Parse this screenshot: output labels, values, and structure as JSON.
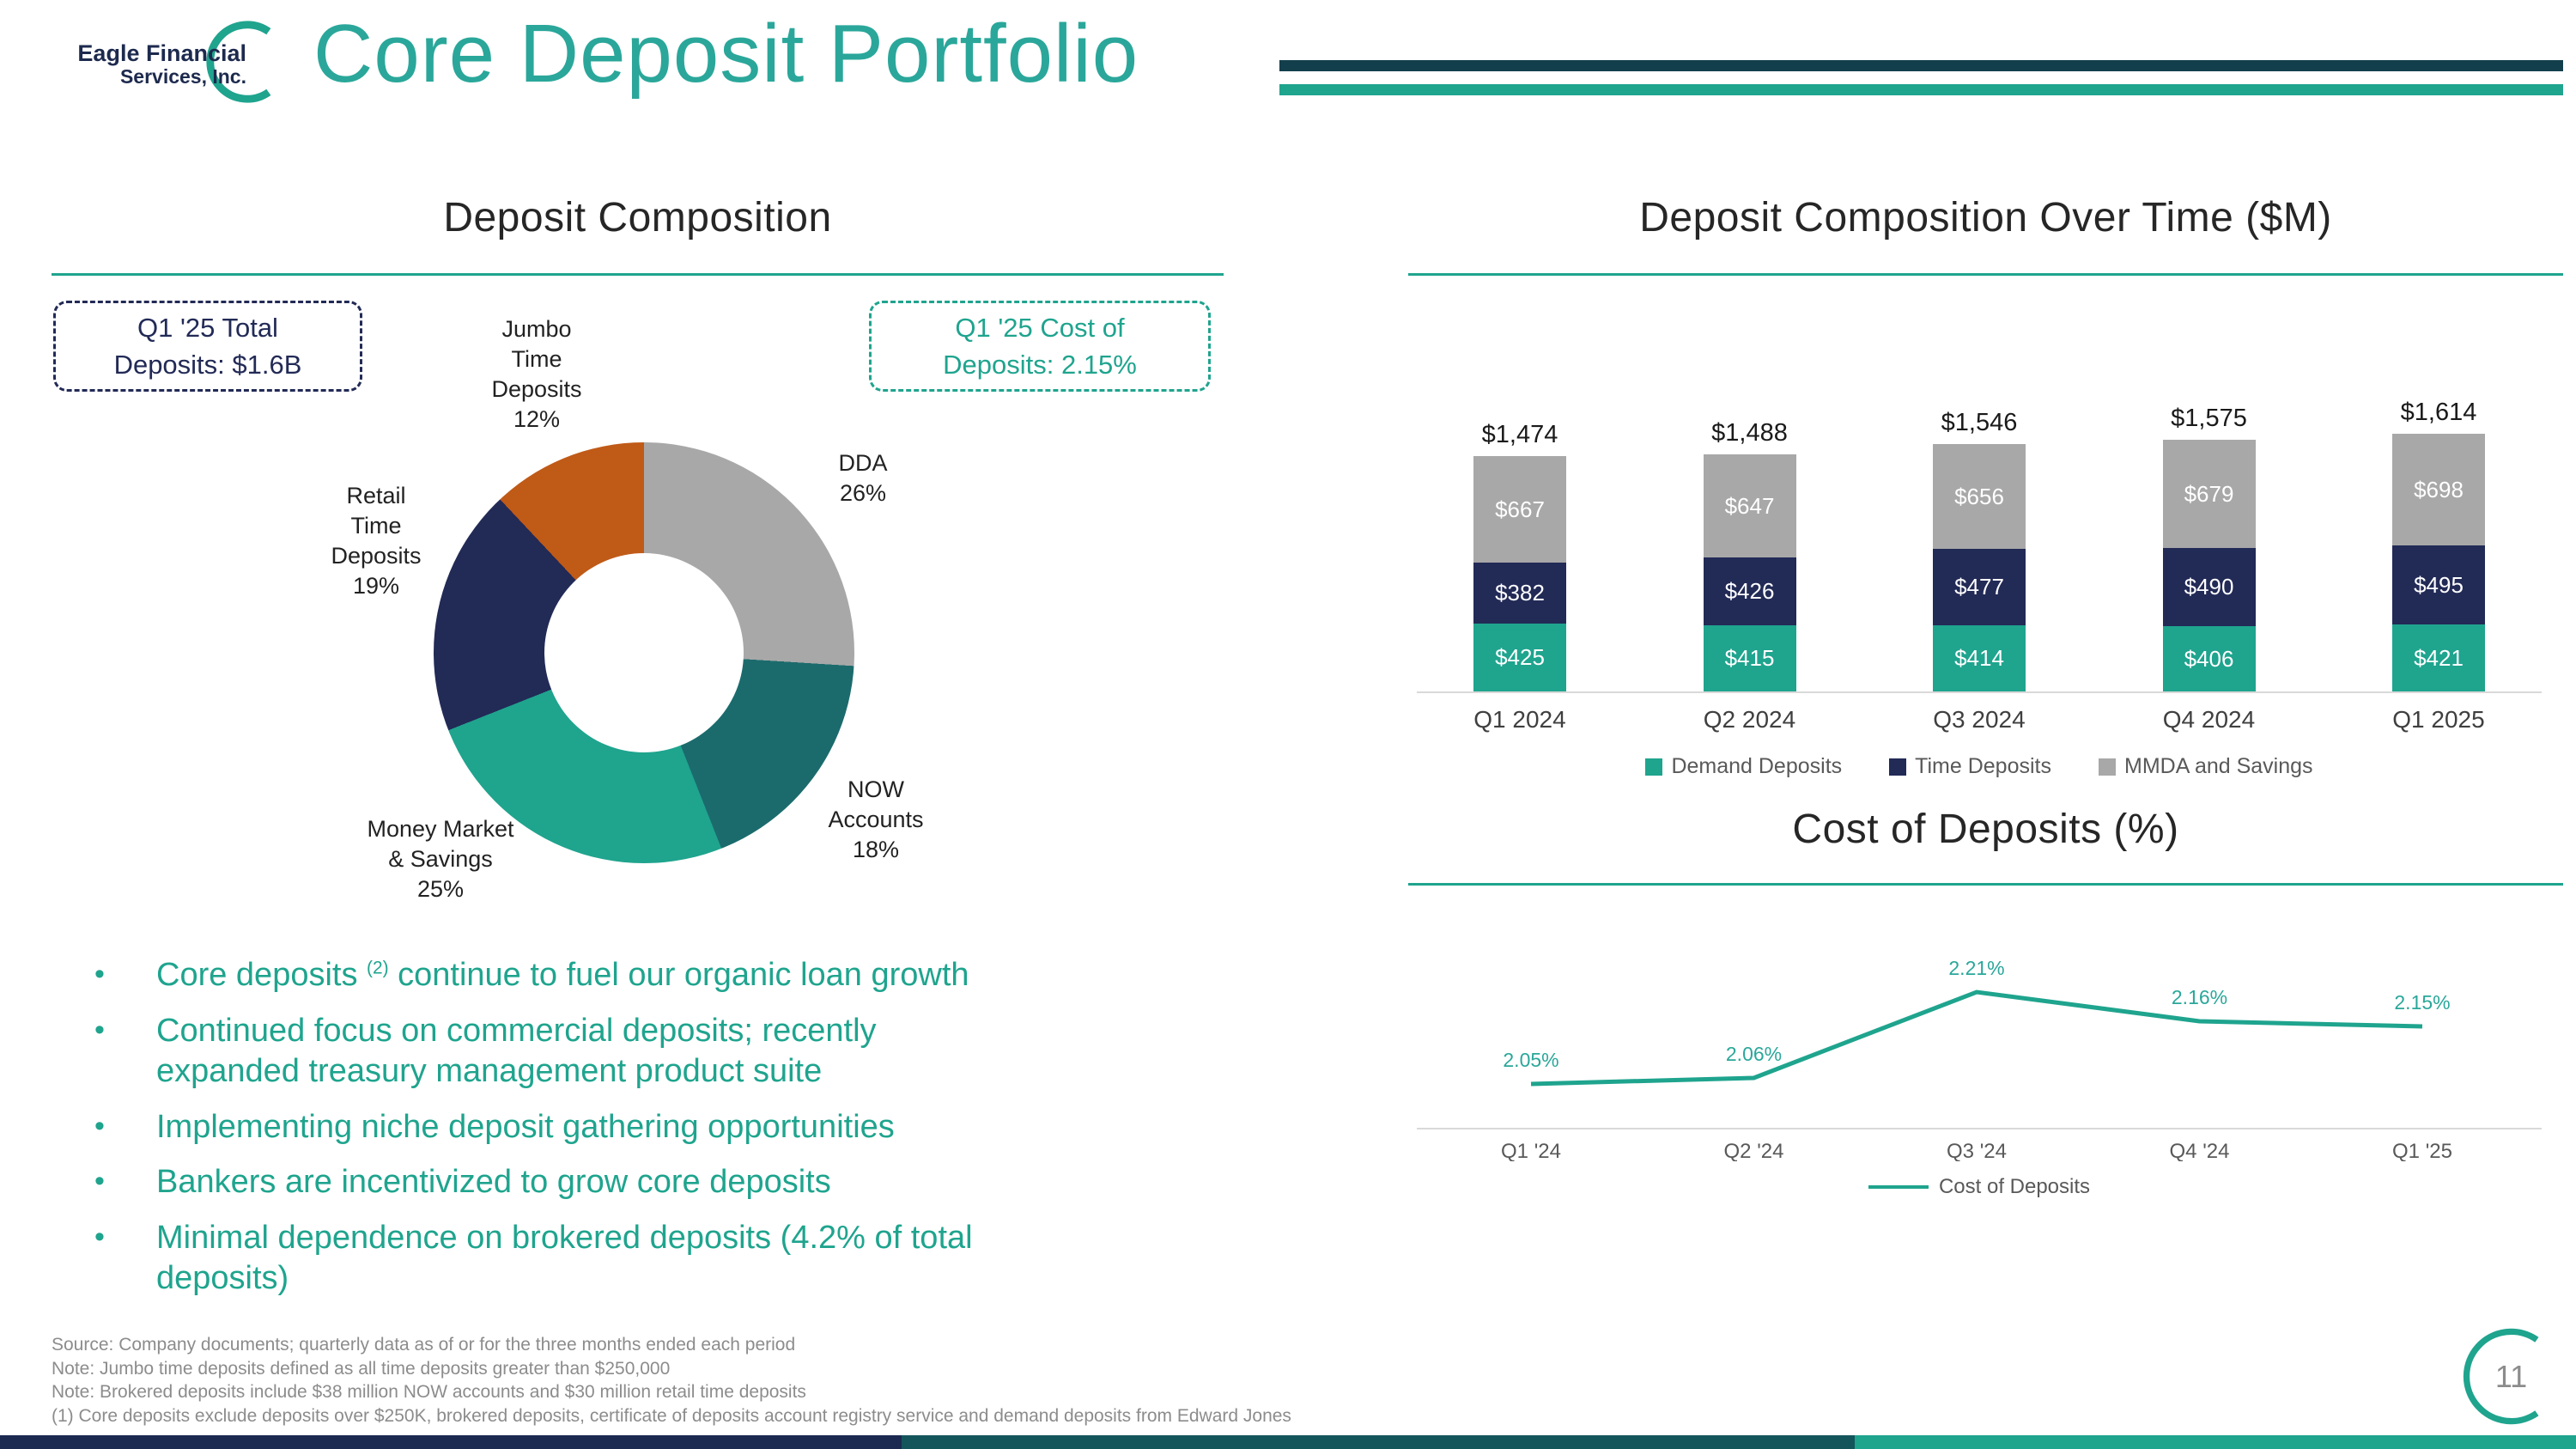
{
  "colors": {
    "teal": "#1FA48E",
    "teal_dark": "#1B6B6D",
    "navy": "#222A56",
    "gray": "#A8A8A8",
    "orange": "#C05A17",
    "title_teal": "#2AA79A",
    "line_navy": "#133F4C",
    "stripe_navy": "#1C2951",
    "stripe_mid": "#14555C",
    "footnote_gray": "#8C8C8C"
  },
  "header": {
    "logo": {
      "line1": "Eagle Financial",
      "line2": "Services, Inc."
    },
    "title": "Core Deposit Portfolio"
  },
  "left": {
    "badges": {
      "total": {
        "line1": "Q1 '25 Total",
        "line2": "Deposits: $1.6B"
      },
      "cost": {
        "line1": "Q1 '25 Cost of",
        "line2": "Deposits: 2.15%"
      }
    },
    "bullets": [
      {
        "segments": [
          {
            "t": "Core deposits "
          },
          {
            "t": "(2)",
            "sup": true
          },
          {
            "t": " continue to fuel our organic loan growth"
          }
        ]
      },
      {
        "segments": [
          {
            "t": "Continued focus on commercial deposits; recently"
          },
          {
            "br": true
          },
          {
            "t": "expanded treasury management product suite"
          }
        ]
      },
      {
        "segments": [
          {
            "t": "Implementing niche deposit gathering opportunities"
          }
        ]
      },
      {
        "segments": [
          {
            "t": "Bankers are incentivized to grow core deposits"
          }
        ]
      },
      {
        "segments": [
          {
            "t": "Minimal dependence on brokered deposits (4.2% of total"
          },
          {
            "br": true
          },
          {
            "t": "deposits)"
          }
        ]
      }
    ]
  },
  "footnotes": [
    "Source: Company documents; quarterly data as of or for the three months ended each period",
    "Note: Jumbo time deposits defined as all time deposits greater than $250,000",
    "Note: Brokered deposits include $38 million NOW accounts and $30 million retail time deposits",
    "(1)   Core deposits exclude deposits over $250K, brokered deposits, certificate of deposits account registry service and demand deposits from Edward Jones"
  ],
  "chart_data": [
    {
      "type": "pie",
      "donut": true,
      "title": "Deposit Composition",
      "slices": [
        {
          "label": "DDA",
          "pct": 26,
          "color_key": "gray",
          "label_lines": [
            "DDA",
            "26%"
          ]
        },
        {
          "label": "NOW Accounts",
          "pct": 18,
          "color_key": "teal_dark",
          "label_lines": [
            "NOW",
            "Accounts",
            "18%"
          ]
        },
        {
          "label": "Money Market & Savings",
          "pct": 25,
          "color_key": "teal",
          "label_lines": [
            "Money Market",
            "& Savings",
            "25%"
          ]
        },
        {
          "label": "Retail Time Deposits",
          "pct": 19,
          "color_key": "navy",
          "label_lines": [
            "Retail",
            "Time",
            "Deposits",
            "19%"
          ]
        },
        {
          "label": "Jumbo Time Deposits",
          "pct": 12,
          "color_key": "orange",
          "label_lines": [
            "Jumbo",
            "Time",
            "Deposits",
            "12%"
          ]
        }
      ],
      "annotations": [
        "Q1 '25 Total Deposits: $1.6B",
        "Q1 '25 Cost of Deposits: 2.15%"
      ]
    },
    {
      "type": "bar",
      "stacked": true,
      "title": "Deposit Composition Over Time ($M)",
      "categories": [
        "Q1 2024",
        "Q2 2024",
        "Q3 2024",
        "Q4 2024",
        "Q1 2025"
      ],
      "totals": [
        "$1,474",
        "$1,488",
        "$1,546",
        "$1,575",
        "$1,614"
      ],
      "series": [
        {
          "name": "Demand Deposits",
          "color_key": "teal",
          "values": [
            425,
            415,
            414,
            406,
            421
          ]
        },
        {
          "name": "Time Deposits",
          "color_key": "navy",
          "values": [
            382,
            426,
            477,
            490,
            495
          ]
        },
        {
          "name": "MMDA and Savings",
          "color_key": "gray",
          "values": [
            667,
            647,
            656,
            679,
            698
          ]
        }
      ],
      "legend_position": "bottom"
    },
    {
      "type": "line",
      "title": "Cost of Deposits (%)",
      "categories": [
        "Q1 '24",
        "Q2 '24",
        "Q3 '24",
        "Q4 '24",
        "Q1 '25"
      ],
      "values": [
        2.05,
        2.06,
        2.21,
        2.16,
        2.15
      ],
      "labels": [
        "2.05%",
        "2.06%",
        "2.21%",
        "2.16%",
        "2.15%"
      ],
      "legend": "Cost of Deposits",
      "ylim": [
        2.0,
        2.25
      ]
    }
  ],
  "page_number": "11"
}
